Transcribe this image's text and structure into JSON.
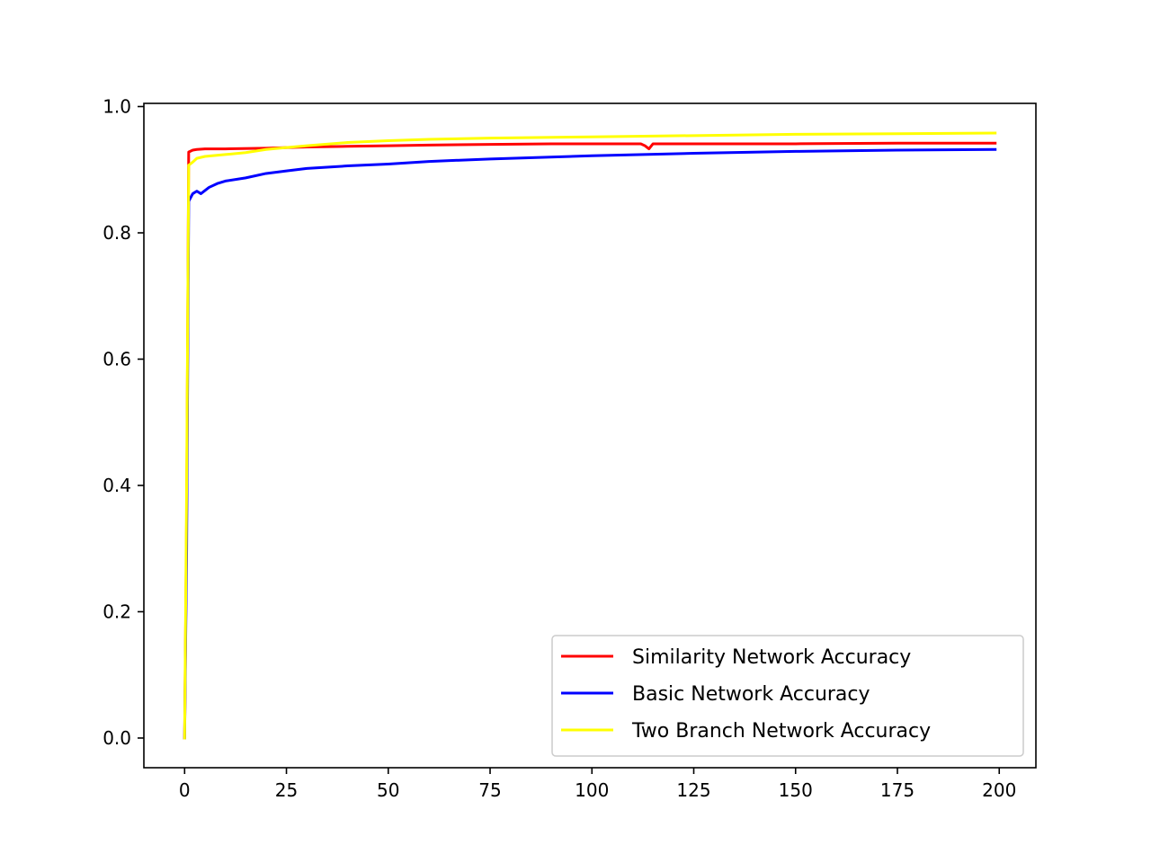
{
  "chart_data": {
    "type": "line",
    "title": "",
    "xlabel": "",
    "ylabel": "",
    "xlim": [
      -10,
      209
    ],
    "ylim": [
      -0.047,
      1.005
    ],
    "xticks": [
      0,
      25,
      50,
      75,
      100,
      125,
      150,
      175,
      200
    ],
    "yticks": [
      0.0,
      0.2,
      0.4,
      0.6,
      0.8,
      1.0
    ],
    "xtick_labels": [
      "0",
      "25",
      "50",
      "75",
      "100",
      "125",
      "150",
      "175",
      "200"
    ],
    "ytick_labels": [
      "0.0",
      "0.2",
      "0.4",
      "0.6",
      "0.8",
      "1.0"
    ],
    "grid": false,
    "legend_position": "lower-right",
    "series": [
      {
        "name": "Similarity Network Accuracy",
        "color": "#ff0000",
        "points": [
          [
            0,
            0.0
          ],
          [
            0.5,
            0.35
          ],
          [
            1,
            0.928
          ],
          [
            2,
            0.931
          ],
          [
            3,
            0.932
          ],
          [
            5,
            0.933
          ],
          [
            10,
            0.933
          ],
          [
            20,
            0.934
          ],
          [
            30,
            0.936
          ],
          [
            40,
            0.937
          ],
          [
            50,
            0.938
          ],
          [
            60,
            0.939
          ],
          [
            75,
            0.94
          ],
          [
            90,
            0.941
          ],
          [
            100,
            0.941
          ],
          [
            112,
            0.941
          ],
          [
            113,
            0.938
          ],
          [
            114,
            0.933
          ],
          [
            115,
            0.941
          ],
          [
            125,
            0.941
          ],
          [
            150,
            0.941
          ],
          [
            175,
            0.942
          ],
          [
            199,
            0.942
          ]
        ]
      },
      {
        "name": "Basic Network Accuracy",
        "color": "#0000ff",
        "points": [
          [
            0,
            0.0
          ],
          [
            0.5,
            0.3
          ],
          [
            1,
            0.85
          ],
          [
            2,
            0.862
          ],
          [
            3,
            0.866
          ],
          [
            4,
            0.862
          ],
          [
            6,
            0.872
          ],
          [
            8,
            0.878
          ],
          [
            10,
            0.882
          ],
          [
            15,
            0.887
          ],
          [
            20,
            0.894
          ],
          [
            25,
            0.898
          ],
          [
            30,
            0.902
          ],
          [
            40,
            0.906
          ],
          [
            50,
            0.909
          ],
          [
            60,
            0.913
          ],
          [
            75,
            0.917
          ],
          [
            100,
            0.922
          ],
          [
            125,
            0.926
          ],
          [
            150,
            0.929
          ],
          [
            175,
            0.931
          ],
          [
            199,
            0.932
          ]
        ]
      },
      {
        "name": "Two Branch Network Accuracy",
        "color": "#ffff00",
        "points": [
          [
            0,
            0.0
          ],
          [
            0.5,
            0.4
          ],
          [
            1,
            0.907
          ],
          [
            2,
            0.912
          ],
          [
            3,
            0.918
          ],
          [
            5,
            0.921
          ],
          [
            10,
            0.924
          ],
          [
            15,
            0.927
          ],
          [
            20,
            0.932
          ],
          [
            25,
            0.935
          ],
          [
            30,
            0.938
          ],
          [
            40,
            0.943
          ],
          [
            50,
            0.946
          ],
          [
            60,
            0.948
          ],
          [
            75,
            0.95
          ],
          [
            100,
            0.952
          ],
          [
            125,
            0.954
          ],
          [
            150,
            0.956
          ],
          [
            175,
            0.957
          ],
          [
            199,
            0.958
          ]
        ]
      }
    ]
  }
}
